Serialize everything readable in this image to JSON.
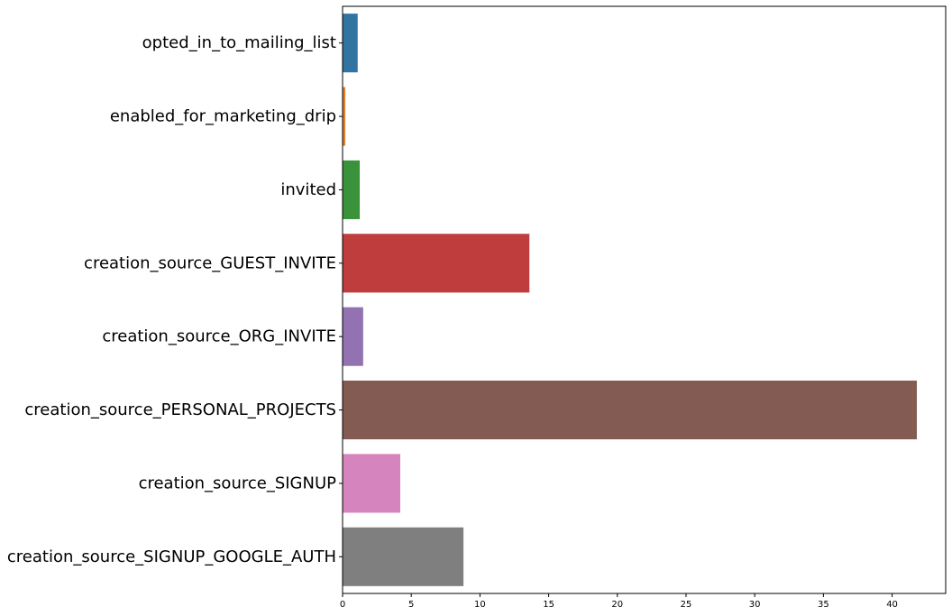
{
  "chart_data": {
    "type": "bar",
    "orientation": "horizontal",
    "categories": [
      "opted_in_to_mailing_list",
      "enabled_for_marketing_drip",
      "invited",
      "creation_source_GUEST_INVITE",
      "creation_source_ORG_INVITE",
      "creation_source_PERSONAL_PROJECTS",
      "creation_source_SIGNUP",
      "creation_source_SIGNUP_GOOGLE_AUTH"
    ],
    "values": [
      1.1,
      0.2,
      1.25,
      13.6,
      1.5,
      41.8,
      4.2,
      8.8
    ],
    "colors": [
      "#3274a1",
      "#e1812c",
      "#3a923a",
      "#c03d3e",
      "#9372b2",
      "#845b53",
      "#d684bd",
      "#7f7f7f"
    ],
    "xticks": [
      0,
      5,
      10,
      15,
      20,
      25,
      30,
      35,
      40
    ],
    "xlim": [
      0,
      43.9
    ],
    "title": "",
    "xlabel": "",
    "ylabel": "",
    "grid": false,
    "legend": "none"
  }
}
